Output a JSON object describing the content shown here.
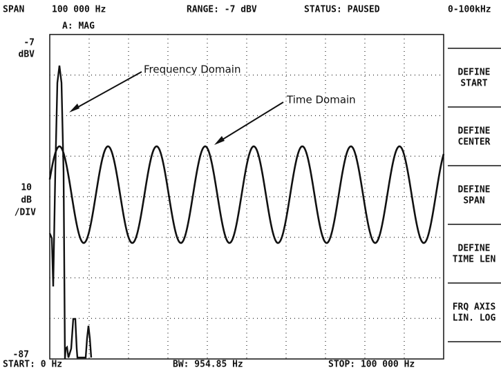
{
  "header": {
    "span_label": "SPAN",
    "span_value": "100 000 Hz",
    "trace": "A: MAG",
    "range": "RANGE:  -7 dBV",
    "status": "STATUS:  PAUSED",
    "band": "0-100kHz"
  },
  "scale": {
    "top": [
      "-7",
      "dBV"
    ],
    "middle": [
      "10",
      "dB",
      "/DIV"
    ],
    "bottom": "-87"
  },
  "footer": {
    "start": "START:  0 Hz",
    "bw": "BW:  954.85 Hz",
    "stop": "STOP:  100 000 Hz"
  },
  "annotations": [
    "Frequency  Domain",
    "Time  Domain"
  ],
  "softkeys": [
    [
      "DEFINE",
      "START"
    ],
    [
      "DEFINE",
      "CENTER"
    ],
    [
      "DEFINE",
      "SPAN"
    ],
    [
      "DEFINE",
      "TIME LEN"
    ],
    [
      "FRQ AXIS",
      "LIN. LOG"
    ]
  ]
}
